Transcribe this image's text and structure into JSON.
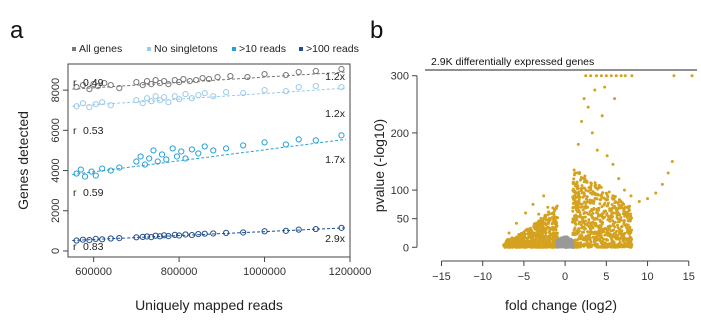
{
  "panels": {
    "a": "a",
    "b": "b"
  },
  "chart_data": [
    {
      "type": "scatter",
      "panel": "a",
      "title": "",
      "xlabel": "Uniquely mapped reads",
      "ylabel": "Genes detected",
      "xlim": [
        540000,
        1200000
      ],
      "ylim": [
        -300,
        9300
      ],
      "xticks": [
        600000,
        800000,
        1000000,
        1200000
      ],
      "xtick_labels": [
        "600000",
        "800000",
        "1000000",
        "1200000"
      ],
      "yticks": [
        0,
        2000,
        4000,
        6000,
        8000
      ],
      "ytick_labels": [
        "0",
        "2000",
        "4000",
        "6000",
        "8000"
      ],
      "legend": {
        "position": "top",
        "entries": [
          "All genes",
          "No singletons",
          ">10 reads",
          ">100 reads"
        ]
      },
      "series": [
        {
          "name": "All genes",
          "color": "#777777",
          "trend": [
            [
              550000,
              8050
            ],
            [
              1190000,
              8900
            ]
          ],
          "r_label": "r",
          "r": "0.49",
          "fold": "1.2x",
          "points": [
            [
              560000,
              8150
            ],
            [
              575000,
              8250
            ],
            [
              590000,
              8050
            ],
            [
              600000,
              8300
            ],
            [
              610000,
              8200
            ],
            [
              625000,
              8350
            ],
            [
              640000,
              8250
            ],
            [
              660000,
              8100
            ],
            [
              700000,
              8400
            ],
            [
              715000,
              8250
            ],
            [
              725000,
              8450
            ],
            [
              735000,
              8300
            ],
            [
              745000,
              8500
            ],
            [
              755000,
              8350
            ],
            [
              765000,
              8450
            ],
            [
              775000,
              8300
            ],
            [
              790000,
              8500
            ],
            [
              800000,
              8400
            ],
            [
              810000,
              8550
            ],
            [
              825000,
              8450
            ],
            [
              840000,
              8500
            ],
            [
              855000,
              8600
            ],
            [
              870000,
              8550
            ],
            [
              890000,
              8650
            ],
            [
              920000,
              8700
            ],
            [
              960000,
              8650
            ],
            [
              1000000,
              8800
            ],
            [
              1050000,
              8750
            ],
            [
              1080000,
              8900
            ],
            [
              1120000,
              8950
            ],
            [
              1180000,
              9050
            ]
          ]
        },
        {
          "name": "No singletons",
          "color": "#9ccbea",
          "trend": [
            [
              550000,
              7200
            ],
            [
              1190000,
              8100
            ]
          ],
          "r_label": "r",
          "r": "0.53",
          "fold": "1.2x",
          "points": [
            [
              560000,
              7200
            ],
            [
              575000,
              7350
            ],
            [
              590000,
              7150
            ],
            [
              605000,
              7300
            ],
            [
              620000,
              7400
            ],
            [
              640000,
              7250
            ],
            [
              700000,
              7500
            ],
            [
              715000,
              7350
            ],
            [
              725000,
              7600
            ],
            [
              735000,
              7450
            ],
            [
              745000,
              7700
            ],
            [
              755000,
              7500
            ],
            [
              765000,
              7650
            ],
            [
              775000,
              7400
            ],
            [
              790000,
              7700
            ],
            [
              800000,
              7550
            ],
            [
              815000,
              7800
            ],
            [
              830000,
              7600
            ],
            [
              845000,
              7750
            ],
            [
              860000,
              7850
            ],
            [
              880000,
              7700
            ],
            [
              910000,
              7900
            ],
            [
              950000,
              7850
            ],
            [
              1000000,
              8000
            ],
            [
              1050000,
              7950
            ],
            [
              1080000,
              8150
            ],
            [
              1120000,
              8200
            ],
            [
              1180000,
              8150
            ]
          ]
        },
        {
          "name": ">10 reads",
          "color": "#27a1d7",
          "trend": [
            [
              550000,
              3800
            ],
            [
              1190000,
              5550
            ]
          ],
          "r_label": "r",
          "r": "0.59",
          "fold": "1.7x",
          "points": [
            [
              560000,
              3850
            ],
            [
              570000,
              4050
            ],
            [
              580000,
              3700
            ],
            [
              595000,
              3950
            ],
            [
              605000,
              3750
            ],
            [
              620000,
              4100
            ],
            [
              640000,
              4000
            ],
            [
              660000,
              4150
            ],
            [
              700000,
              4450
            ],
            [
              710000,
              4700
            ],
            [
              720000,
              4300
            ],
            [
              730000,
              4600
            ],
            [
              740000,
              5000
            ],
            [
              750000,
              4450
            ],
            [
              760000,
              4800
            ],
            [
              770000,
              4550
            ],
            [
              785000,
              5100
            ],
            [
              795000,
              4700
            ],
            [
              805000,
              4950
            ],
            [
              815000,
              4600
            ],
            [
              830000,
              5050
            ],
            [
              845000,
              4850
            ],
            [
              860000,
              5200
            ],
            [
              880000,
              5000
            ],
            [
              910000,
              5100
            ],
            [
              950000,
              5250
            ],
            [
              1000000,
              5400
            ],
            [
              1050000,
              5300
            ],
            [
              1080000,
              5550
            ],
            [
              1120000,
              5500
            ],
            [
              1180000,
              5750
            ]
          ]
        },
        {
          "name": ">100 reads",
          "color": "#1f4e8c",
          "trend": [
            [
              550000,
              520
            ],
            [
              1190000,
              1150
            ]
          ],
          "r_label": "r",
          "r": "0.83",
          "fold": "2.9x",
          "points": [
            [
              560000,
              520
            ],
            [
              575000,
              560
            ],
            [
              590000,
              540
            ],
            [
              605000,
              600
            ],
            [
              620000,
              580
            ],
            [
              640000,
              620
            ],
            [
              660000,
              640
            ],
            [
              700000,
              680
            ],
            [
              715000,
              700
            ],
            [
              725000,
              720
            ],
            [
              735000,
              690
            ],
            [
              745000,
              760
            ],
            [
              755000,
              730
            ],
            [
              765000,
              780
            ],
            [
              775000,
              740
            ],
            [
              790000,
              800
            ],
            [
              800000,
              770
            ],
            [
              815000,
              820
            ],
            [
              830000,
              790
            ],
            [
              845000,
              840
            ],
            [
              860000,
              860
            ],
            [
              880000,
              870
            ],
            [
              910000,
              900
            ],
            [
              950000,
              920
            ],
            [
              1000000,
              980
            ],
            [
              1050000,
              1000
            ],
            [
              1080000,
              1060
            ],
            [
              1120000,
              1090
            ],
            [
              1180000,
              1150
            ]
          ]
        }
      ]
    },
    {
      "type": "scatter",
      "panel": "b",
      "subtitle": "2.9K differentially expressed genes",
      "xlabel": "fold change (log2)",
      "ylabel": "pvalue (-log10)",
      "xlim": [
        -17,
        16
      ],
      "ylim": [
        -10,
        310
      ],
      "xticks": [
        -15,
        -10,
        -5,
        0,
        5,
        10,
        15
      ],
      "xtick_labels": [
        "−15",
        "−10",
        "−5",
        "0",
        "5",
        "10",
        "15"
      ],
      "yticks": [
        0,
        50,
        100,
        200,
        300
      ],
      "ytick_labels": [
        "0",
        "50",
        "100",
        "200",
        "300"
      ],
      "significant_color": "#d4a21f",
      "nonsignificant_color": "#999999",
      "nonsignificant_region": {
        "fold_change": [
          -1,
          1
        ],
        "pvalue": [
          0,
          20
        ]
      },
      "significant_count_label": "2.9K",
      "capped_points": [
        [
          2.5,
          300
        ],
        [
          3.1,
          300
        ],
        [
          3.8,
          300
        ],
        [
          4.4,
          300
        ],
        [
          5.0,
          300
        ],
        [
          5.6,
          300
        ],
        [
          6.2,
          300
        ],
        [
          6.8,
          300
        ],
        [
          7.3,
          300
        ],
        [
          8.1,
          300
        ],
        [
          13.2,
          300
        ],
        [
          15.4,
          300
        ]
      ],
      "outliers": [
        [
          -6.8,
          25
        ],
        [
          -5.9,
          42
        ],
        [
          -4.8,
          60
        ],
        [
          -3.9,
          75
        ],
        [
          -3.2,
          58
        ],
        [
          -2.6,
          90
        ],
        [
          -2.1,
          70
        ],
        [
          1.2,
          130
        ],
        [
          1.6,
          180
        ],
        [
          2.0,
          220
        ],
        [
          2.3,
          260
        ],
        [
          2.8,
          245
        ],
        [
          3.3,
          200
        ],
        [
          3.9,
          170
        ],
        [
          4.5,
          230
        ],
        [
          5.1,
          160
        ],
        [
          5.8,
          145
        ],
        [
          6.5,
          120
        ],
        [
          7.2,
          100
        ],
        [
          8.0,
          90
        ],
        [
          9.0,
          80
        ],
        [
          10.0,
          85
        ],
        [
          11.0,
          95
        ],
        [
          11.8,
          110
        ],
        [
          12.5,
          130
        ],
        [
          13.0,
          150
        ],
        [
          6.0,
          260
        ],
        [
          4.8,
          280
        ],
        [
          3.6,
          275
        ]
      ]
    }
  ]
}
